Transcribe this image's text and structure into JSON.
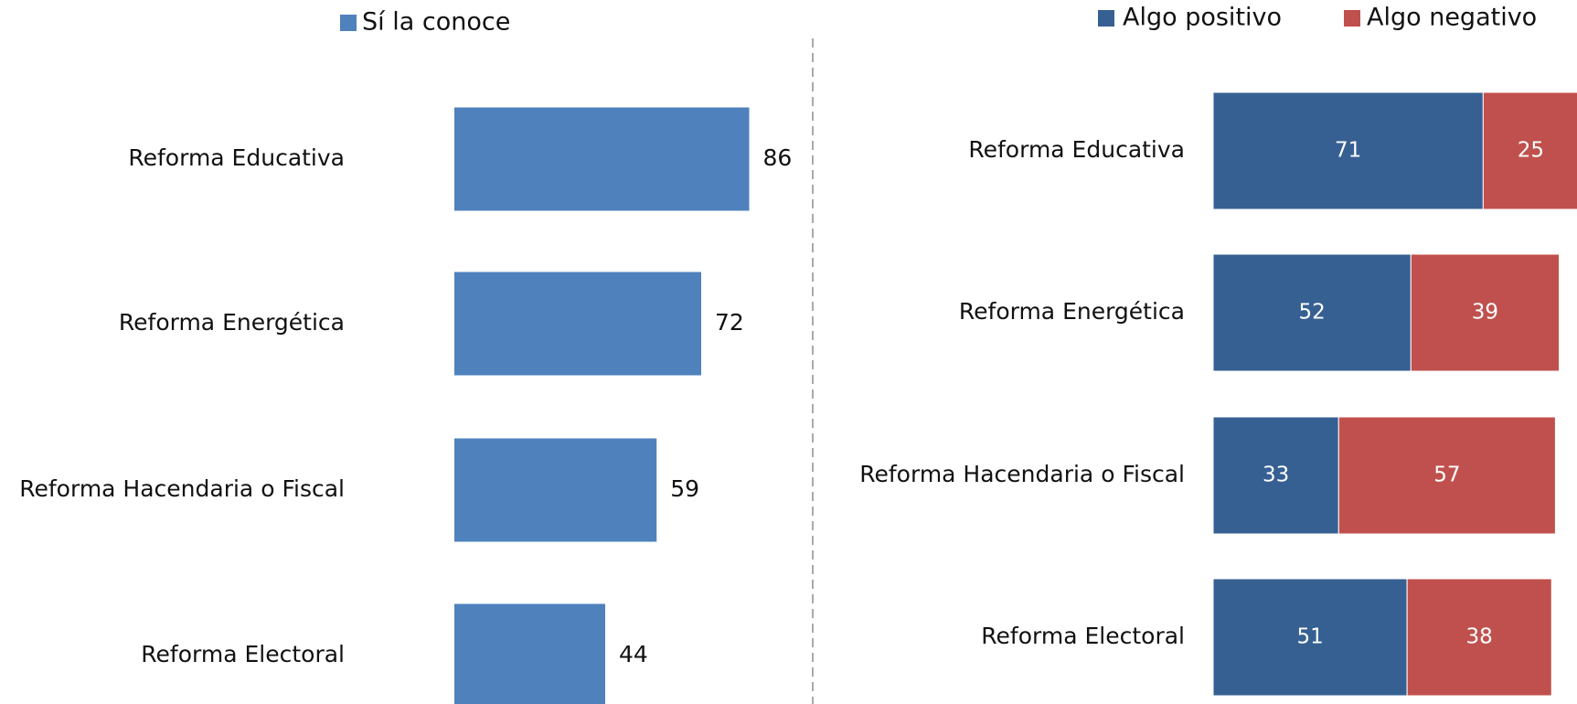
{
  "chart_data": [
    {
      "type": "bar",
      "orientation": "horizontal",
      "categories": [
        "Reforma Educativa",
        "Reforma Energética",
        "Reforma Hacendaria o Fiscal",
        "Reforma Electoral"
      ],
      "series": [
        {
          "name": "Sí la conoce",
          "color": "#4f81bd",
          "values": [
            86,
            72,
            59,
            44
          ]
        }
      ]
    },
    {
      "type": "stacked_bar",
      "orientation": "horizontal",
      "categories": [
        "Reforma Educativa",
        "Reforma Energética",
        "Reforma Hacendaria o Fiscal",
        "Reforma Electoral"
      ],
      "series": [
        {
          "name": "Algo positivo",
          "color": "#366092",
          "values": [
            71,
            52,
            33,
            51
          ]
        },
        {
          "name": "Algo negativo",
          "color": "#c0504d",
          "values": [
            25,
            39,
            57,
            38
          ]
        }
      ]
    }
  ]
}
